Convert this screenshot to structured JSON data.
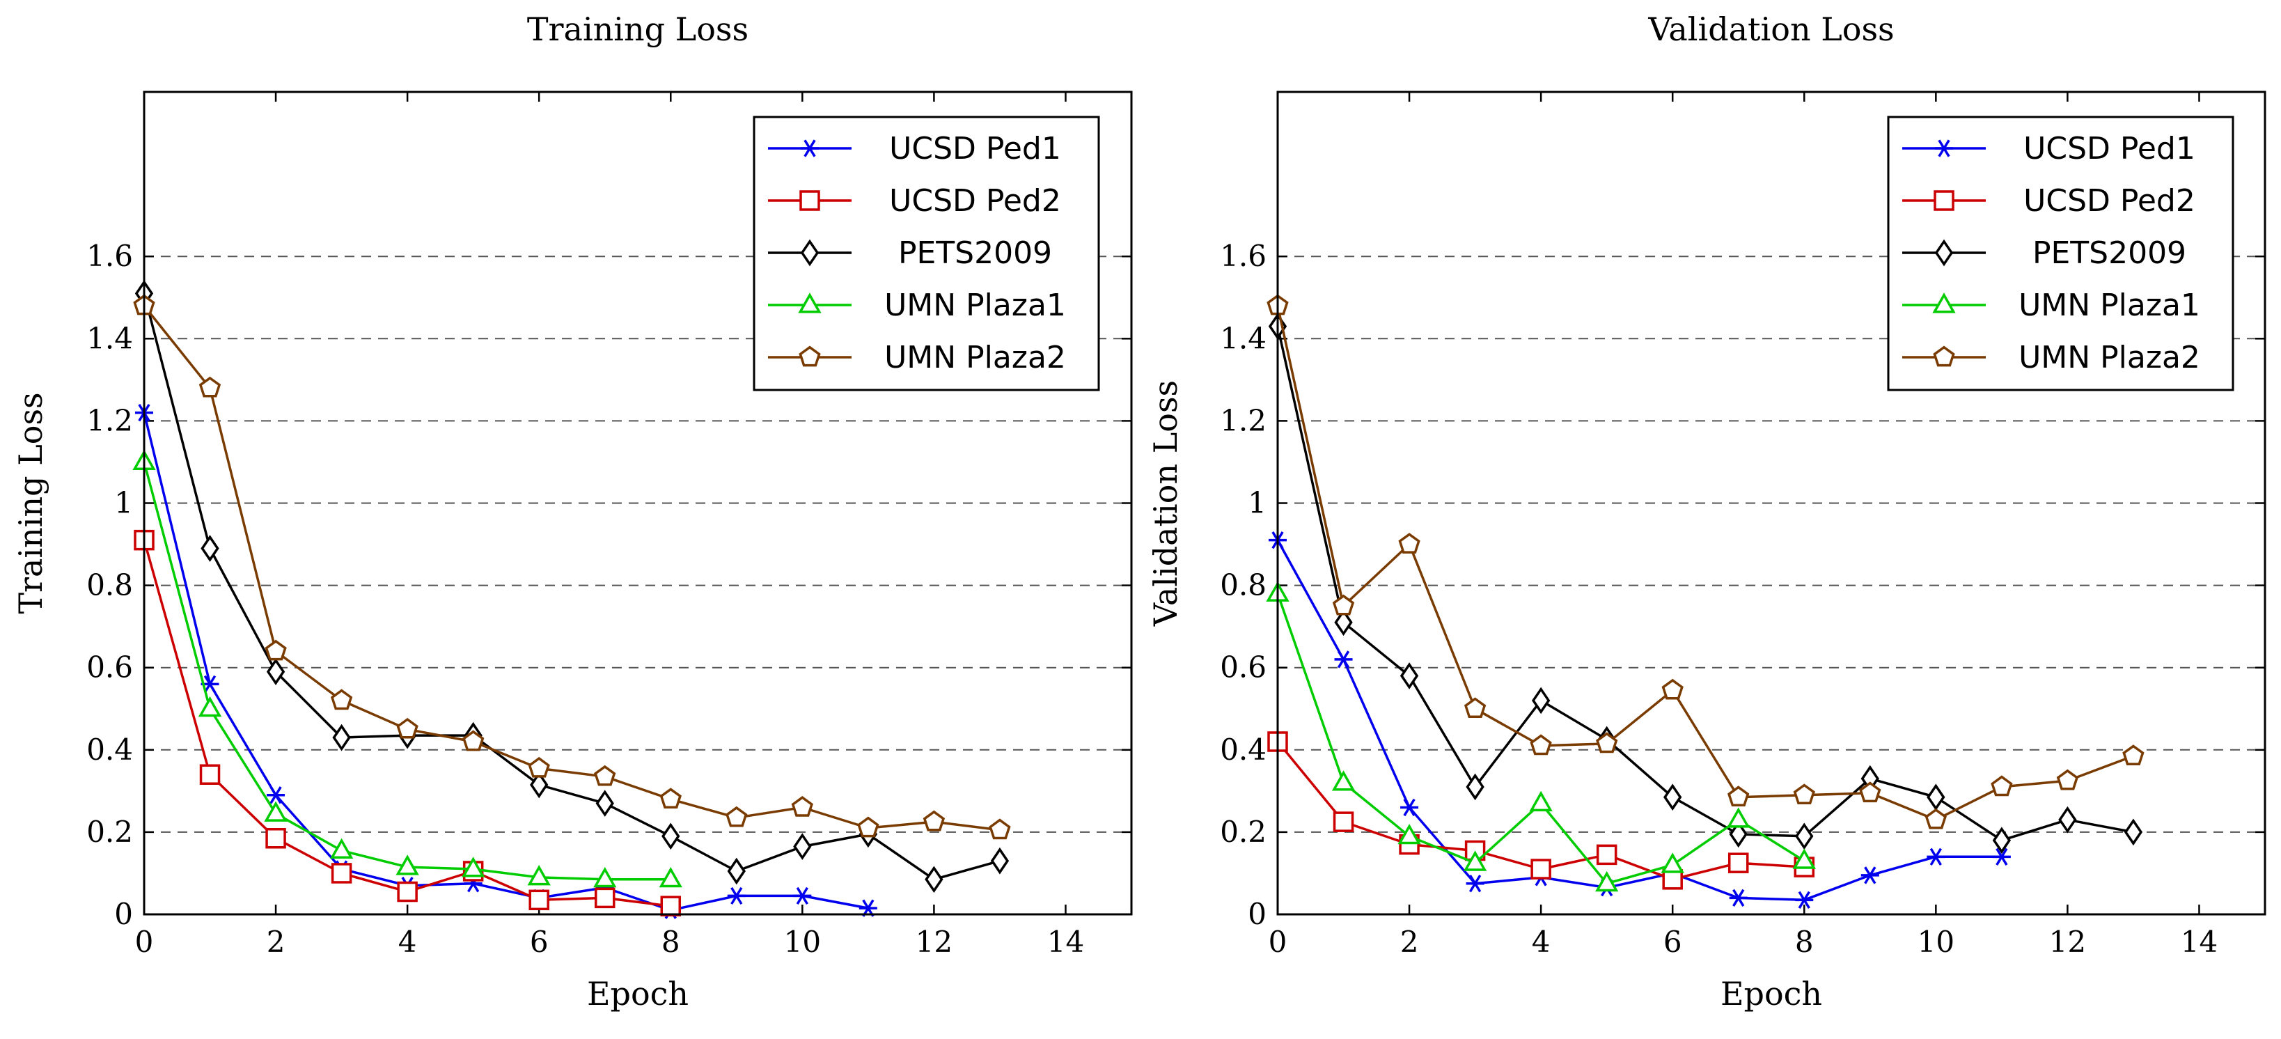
{
  "chart_data": [
    {
      "type": "line",
      "title": "Training Loss",
      "xlabel": "Epoch",
      "ylabel": "Training Loss",
      "xlim": [
        0,
        15
      ],
      "ylim": [
        0,
        2.0
      ],
      "xticks": [
        "0",
        "2",
        "4",
        "6",
        "8",
        "10",
        "12",
        "14"
      ],
      "yticks": [
        "0",
        "0.2",
        "0.4",
        "0.6",
        "0.8",
        "1",
        "1.2",
        "1.4",
        "1.6"
      ],
      "grid": "horizontal dashed",
      "legend_position": "top-right",
      "series": [
        {
          "name": "UCSD Ped1",
          "color": "#0000ee",
          "marker": "star",
          "x": [
            0,
            1,
            2,
            3,
            4,
            5,
            6,
            7,
            8,
            9,
            10,
            11
          ],
          "y": [
            1.22,
            0.56,
            0.29,
            0.11,
            0.07,
            0.075,
            0.04,
            0.065,
            0.01,
            0.045,
            0.045,
            0.015
          ]
        },
        {
          "name": "UCSD Ped2",
          "color": "#cc0000",
          "marker": "square",
          "x": [
            0,
            1,
            2,
            3,
            4,
            5,
            6,
            7,
            8
          ],
          "y": [
            0.91,
            0.34,
            0.185,
            0.1,
            0.055,
            0.105,
            0.035,
            0.04,
            0.02
          ]
        },
        {
          "name": "PETS2009",
          "color": "#000000",
          "marker": "diamond",
          "x": [
            0,
            1,
            2,
            3,
            4,
            5,
            6,
            7,
            8,
            9,
            10,
            11,
            12,
            13
          ],
          "y": [
            1.51,
            0.89,
            0.59,
            0.43,
            0.435,
            0.435,
            0.315,
            0.27,
            0.19,
            0.105,
            0.165,
            0.195,
            0.085,
            0.13
          ]
        },
        {
          "name": "UMN Plaza1",
          "color": "#00cc00",
          "marker": "triangle",
          "x": [
            0,
            1,
            2,
            3,
            4,
            5,
            6,
            7,
            8
          ],
          "y": [
            1.1,
            0.5,
            0.245,
            0.155,
            0.115,
            0.11,
            0.09,
            0.085,
            0.085
          ]
        },
        {
          "name": "UMN Plaza2",
          "color": "#7a3b00",
          "marker": "pentagon",
          "x": [
            0,
            1,
            2,
            3,
            4,
            5,
            6,
            7,
            8,
            9,
            10,
            11,
            12,
            13
          ],
          "y": [
            1.48,
            1.28,
            0.64,
            0.52,
            0.45,
            0.42,
            0.355,
            0.335,
            0.28,
            0.235,
            0.26,
            0.21,
            0.225,
            0.205
          ]
        }
      ]
    },
    {
      "type": "line",
      "title": "Validation Loss",
      "xlabel": "Epoch",
      "ylabel": "Validation Loss",
      "xlim": [
        0,
        15
      ],
      "ylim": [
        0,
        2.0
      ],
      "xticks": [
        "0",
        "2",
        "4",
        "6",
        "8",
        "10",
        "12",
        "14"
      ],
      "yticks": [
        "0",
        "0.2",
        "0.4",
        "0.6",
        "0.8",
        "1",
        "1.2",
        "1.4",
        "1.6"
      ],
      "grid": "horizontal dashed",
      "legend_position": "top-right",
      "series": [
        {
          "name": "UCSD Ped1",
          "color": "#0000ee",
          "marker": "star",
          "x": [
            0,
            1,
            2,
            3,
            4,
            5,
            6,
            7,
            8,
            9,
            10,
            11
          ],
          "y": [
            0.91,
            0.62,
            0.26,
            0.075,
            0.09,
            0.065,
            0.1,
            0.04,
            0.035,
            0.095,
            0.14,
            0.14
          ]
        },
        {
          "name": "UCSD Ped2",
          "color": "#cc0000",
          "marker": "square",
          "x": [
            0,
            1,
            2,
            3,
            4,
            5,
            6,
            7,
            8
          ],
          "y": [
            0.42,
            0.225,
            0.17,
            0.155,
            0.11,
            0.145,
            0.085,
            0.125,
            0.115
          ]
        },
        {
          "name": "PETS2009",
          "color": "#000000",
          "marker": "diamond",
          "x": [
            0,
            1,
            2,
            3,
            4,
            5,
            6,
            7,
            8,
            9,
            10,
            11,
            12,
            13
          ],
          "y": [
            1.43,
            0.71,
            0.58,
            0.31,
            0.52,
            0.425,
            0.285,
            0.195,
            0.19,
            0.33,
            0.285,
            0.18,
            0.23,
            0.2
          ]
        },
        {
          "name": "UMN Plaza1",
          "color": "#00cc00",
          "marker": "triangle",
          "x": [
            0,
            1,
            2,
            3,
            4,
            5,
            6,
            7,
            8
          ],
          "y": [
            0.78,
            0.32,
            0.19,
            0.125,
            0.27,
            0.075,
            0.12,
            0.23,
            0.13
          ]
        },
        {
          "name": "UMN Plaza2",
          "color": "#7a3b00",
          "marker": "pentagon",
          "x": [
            0,
            1,
            2,
            3,
            4,
            5,
            6,
            7,
            8,
            9,
            10,
            11,
            12,
            13
          ],
          "y": [
            1.48,
            0.75,
            0.9,
            0.5,
            0.41,
            0.415,
            0.545,
            0.285,
            0.29,
            0.295,
            0.23,
            0.31,
            0.325,
            0.385
          ]
        }
      ]
    }
  ]
}
